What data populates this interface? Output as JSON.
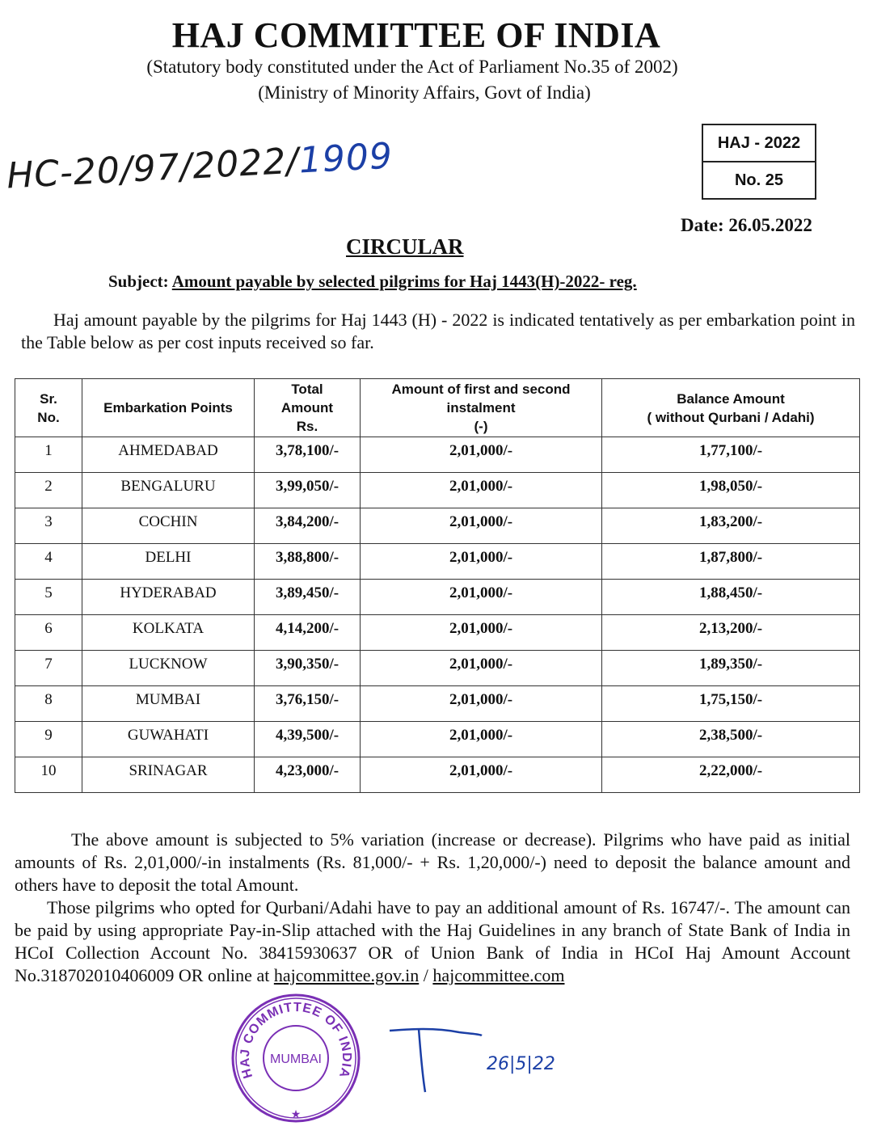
{
  "header": {
    "title": "HAJ COMMITTEE OF INDIA",
    "subtitle1": "(Statutory body constituted under the Act of Parliament No.35 of 2002)",
    "subtitle2": "(Ministry of Minority Affairs, Govt of India)"
  },
  "reference": {
    "handwritten": "HC-20/97/2022/",
    "handwritten_number": "1909"
  },
  "circular_box": {
    "year": "HAJ - 2022",
    "number": "No.  25"
  },
  "date": "Date:  26.05.2022",
  "heading": "CIRCULAR",
  "subject": {
    "label": "Subject:",
    "text": "Amount payable by selected pilgrims for Haj 1443(H)-2022- reg."
  },
  "intro": "Haj amount payable by the pilgrims for Haj 1443 (H) - 2022 is indicated tentatively as per embarkation point in the Table below as per cost inputs received so far.",
  "table": {
    "headers": {
      "sr_line1": "Sr.",
      "sr_line2": "No.",
      "point": "Embarkation Points",
      "total_line1": "Total",
      "total_line2": "Amount",
      "total_line3": "Rs.",
      "inst_line1": "Amount of first and second",
      "inst_line2": "instalment",
      "inst_line3": "(-)",
      "bal_line1": "Balance Amount",
      "bal_line2": "( without Qurbani / Adahi)"
    },
    "rows": [
      {
        "sr": "1",
        "point": "AHMEDABAD",
        "total": "3,78,100/-",
        "instalment": "2,01,000/-",
        "balance": "1,77,100/-"
      },
      {
        "sr": "2",
        "point": "BENGALURU",
        "total": "3,99,050/-",
        "instalment": "2,01,000/-",
        "balance": "1,98,050/-"
      },
      {
        "sr": "3",
        "point": "COCHIN",
        "total": "3,84,200/-",
        "instalment": "2,01,000/-",
        "balance": "1,83,200/-"
      },
      {
        "sr": "4",
        "point": "DELHI",
        "total": "3,88,800/-",
        "instalment": "2,01,000/-",
        "balance": "1,87,800/-"
      },
      {
        "sr": "5",
        "point": "HYDERABAD",
        "total": "3,89,450/-",
        "instalment": "2,01,000/-",
        "balance": "1,88,450/-"
      },
      {
        "sr": "6",
        "point": "KOLKATA",
        "total": "4,14,200/-",
        "instalment": "2,01,000/-",
        "balance": "2,13,200/-"
      },
      {
        "sr": "7",
        "point": "LUCKNOW",
        "total": "3,90,350/-",
        "instalment": "2,01,000/-",
        "balance": "1,89,350/-"
      },
      {
        "sr": "8",
        "point": "MUMBAI",
        "total": "3,76,150/-",
        "instalment": "2,01,000/-",
        "balance": "1,75,150/-"
      },
      {
        "sr": "9",
        "point": "GUWAHATI",
        "total": "4,39,500/-",
        "instalment": "2,01,000/-",
        "balance": "2,38,500/-"
      },
      {
        "sr": "10",
        "point": "SRINAGAR",
        "total": "4,23,000/-",
        "instalment": "2,01,000/-",
        "balance": "2,22,000/-"
      }
    ]
  },
  "footer": {
    "para1": "The above amount is subjected to 5% variation (increase or decrease). Pilgrims who have paid as initial amounts of Rs. 2,01,000/-in instalments (Rs. 81,000/- + Rs. 1,20,000/-) need to deposit the balance amount and others have to deposit the total Amount.",
    "para2": "Those pilgrims who opted for Qurbani/Adahi have to pay an additional amount of Rs. 16747/-. The amount can be paid by using appropriate  Pay-in-Slip attached with the Haj Guidelines in any branch of State Bank of India in HCoI Collection Account No. 38415930637 OR of  Union Bank of India in HCoI Haj Amount Account No.318702010406009 OR online at ",
    "link1": "hajcommittee.gov.in",
    "separator": " / ",
    "link2": "hajcommittee.com"
  },
  "stamp": {
    "outer": "HAJ COMMITTEE OF INDIA",
    "center": "MUMBAI",
    "color": "#7a2fb5"
  },
  "signature": {
    "date": "26|5|22"
  }
}
